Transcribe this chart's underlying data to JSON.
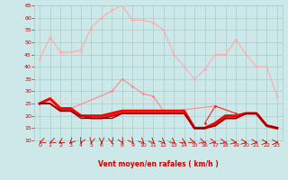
{
  "x": [
    0,
    1,
    2,
    3,
    4,
    5,
    6,
    7,
    8,
    9,
    10,
    11,
    12,
    13,
    14,
    15,
    16,
    17,
    18,
    19,
    20,
    21,
    22,
    23
  ],
  "series": [
    {
      "name": "rafales_top",
      "color": "#ffaaaa",
      "linewidth": 0.8,
      "marker": "D",
      "markersize": 1.8,
      "y": [
        43,
        52,
        46,
        46,
        47,
        56,
        60,
        63,
        65,
        59,
        59,
        58,
        55,
        45,
        40,
        35,
        39,
        45,
        45,
        51,
        45,
        40,
        40,
        28
      ]
    },
    {
      "name": "rafales_mid_upper",
      "color": "#ffbbbb",
      "linewidth": 0.8,
      "marker": "D",
      "markersize": 1.8,
      "y": [
        null,
        null,
        45,
        46,
        46,
        null,
        null,
        null,
        null,
        null,
        null,
        null,
        null,
        null,
        null,
        null,
        null,
        null,
        null,
        null,
        null,
        null,
        null,
        null
      ]
    },
    {
      "name": "vent_mid_light",
      "color": "#ffcccc",
      "linewidth": 0.8,
      "marker": null,
      "markersize": 0,
      "y": [
        25,
        26,
        27,
        27,
        27,
        27,
        27,
        27,
        27,
        27,
        27,
        27,
        27,
        27,
        27,
        27,
        27,
        27,
        27,
        27,
        27,
        27,
        27,
        27
      ]
    },
    {
      "name": "rafales_med_pink",
      "color": "#ff8888",
      "linewidth": 0.8,
      "marker": "D",
      "markersize": 1.8,
      "y": [
        null,
        null,
        null,
        23,
        null,
        null,
        null,
        30,
        35,
        32,
        29,
        28,
        22,
        22,
        null,
        null,
        null,
        24,
        null,
        null,
        null,
        null,
        null,
        null
      ]
    },
    {
      "name": "vent_dark1",
      "color": "#ff0000",
      "linewidth": 2.2,
      "marker": null,
      "markersize": 0,
      "y": [
        25,
        27,
        23,
        23,
        20,
        20,
        20,
        21,
        22,
        22,
        22,
        22,
        22,
        22,
        22,
        15,
        15,
        17,
        20,
        20,
        21,
        21,
        16,
        15
      ]
    },
    {
      "name": "vent_dark2",
      "color": "#cc0000",
      "linewidth": 1.4,
      "marker": null,
      "markersize": 0,
      "y": [
        25,
        25,
        22,
        22,
        20,
        19,
        19,
        20,
        21,
        21,
        21,
        21,
        21,
        21,
        21,
        15,
        15,
        16,
        19,
        19,
        21,
        21,
        16,
        15
      ]
    },
    {
      "name": "vent_dark3",
      "color": "#880000",
      "linewidth": 1.0,
      "marker": null,
      "markersize": 0,
      "y": [
        25,
        25,
        22,
        22,
        19,
        19,
        19,
        19,
        21,
        21,
        21,
        21,
        21,
        21,
        21,
        15,
        15,
        16,
        19,
        19,
        21,
        21,
        16,
        15
      ]
    },
    {
      "name": "vent_markers",
      "color": "#ff2222",
      "linewidth": 0.8,
      "marker": "D",
      "markersize": 1.8,
      "y": [
        null,
        null,
        null,
        null,
        null,
        null,
        null,
        null,
        null,
        null,
        null,
        null,
        null,
        null,
        null,
        null,
        17,
        24,
        null,
        21,
        null,
        null,
        null,
        null
      ]
    }
  ],
  "xlabel": "Vent moyen/en rafales ( km/h )",
  "ylim": [
    10,
    65
  ],
  "xlim": [
    -0.5,
    23.5
  ],
  "yticks": [
    10,
    15,
    20,
    25,
    30,
    35,
    40,
    45,
    50,
    55,
    60,
    65
  ],
  "xticks": [
    0,
    1,
    2,
    3,
    4,
    5,
    6,
    7,
    8,
    9,
    10,
    11,
    12,
    13,
    14,
    15,
    16,
    17,
    18,
    19,
    20,
    21,
    22,
    23
  ],
  "bg_color": "#cde8e8",
  "grid_color": "#aacccc",
  "xlabel_color": "#cc0000",
  "tick_color": "#cc0000",
  "figsize": [
    3.2,
    2.0
  ],
  "dpi": 100
}
